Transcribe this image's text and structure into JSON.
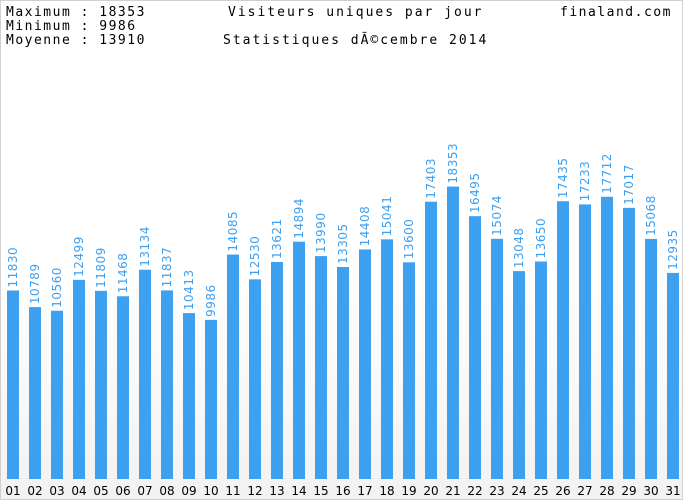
{
  "stats": {
    "max_label": "Maximum : 18353",
    "min_label": "Minimum : 9986",
    "avg_label": "Moyenne : 13910"
  },
  "header": {
    "title": "Visiteurs uniques par jour",
    "subtitle": "Statistiques dÃ©cembre 2014",
    "site": "finaland.com"
  },
  "colors": {
    "bar": "#3ea0f0",
    "value_label": "#3ea0f0"
  },
  "chart_data": {
    "type": "bar",
    "title": "Visiteurs uniques par jour",
    "subtitle": "Statistiques dÃ©cembre 2014",
    "xlabel": "",
    "ylabel": "",
    "ylim": [
      0,
      30000
    ],
    "grid": false,
    "categories": [
      "01",
      "02",
      "03",
      "04",
      "05",
      "06",
      "07",
      "08",
      "09",
      "10",
      "11",
      "12",
      "13",
      "14",
      "15",
      "16",
      "17",
      "18",
      "19",
      "20",
      "21",
      "22",
      "23",
      "24",
      "25",
      "26",
      "27",
      "28",
      "29",
      "30",
      "31"
    ],
    "values": [
      11830,
      10789,
      10560,
      12499,
      11809,
      11468,
      13134,
      11837,
      10413,
      9986,
      14085,
      12530,
      13621,
      14894,
      13990,
      13305,
      14408,
      15041,
      13600,
      17403,
      18353,
      16495,
      15074,
      13048,
      13650,
      17435,
      17233,
      17712,
      17017,
      15068,
      12935
    ]
  }
}
